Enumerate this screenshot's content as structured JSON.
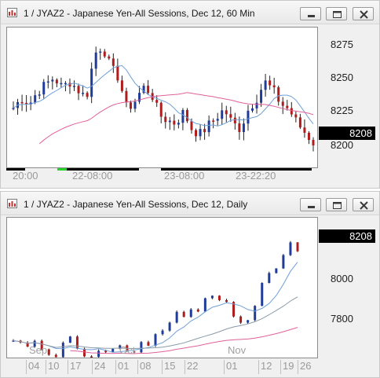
{
  "top": {
    "title": "1 / JYAZ2 - Japanese Yen-All Sessions, Dec 12, 60 Min",
    "price_labels": [
      "8275",
      "8250",
      "8225",
      "8200"
    ],
    "last_price": "8208",
    "time_labels": [
      "20:00",
      "22-08:00",
      "23-08:00",
      "23-22:20"
    ],
    "colors": {
      "up": "#1f3c9a",
      "down": "#b01c1c",
      "ma_fast": "#6fa0d8",
      "ma_slow": "#e0609a",
      "session_active": "#2cd02c",
      "session": "#000000"
    }
  },
  "bottom": {
    "title": "1 / JYAZ2 - Japanese Yen-All Sessions, Dec 12, Daily",
    "price_labels": [
      "8000",
      "7800"
    ],
    "last_price": "8208",
    "month_labels": [
      "Sep",
      "Oct",
      "Nov"
    ],
    "day_labels": [
      "04",
      "10",
      "17",
      "24",
      "01",
      "08",
      "15",
      "22",
      "01",
      "12",
      "19",
      "26"
    ]
  },
  "window_buttons": {
    "minimize": "minimize-icon",
    "maximize": "maximize-icon",
    "close": "close-icon"
  }
}
